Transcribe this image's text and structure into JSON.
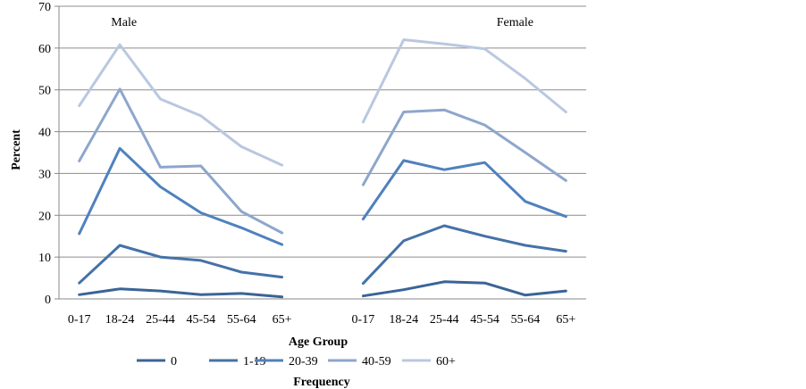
{
  "chart_data": {
    "type": "line",
    "ylabel": "Percent",
    "xlabel": "Age Group",
    "ylim": [
      0,
      70
    ],
    "yticks": [
      0,
      10,
      20,
      30,
      40,
      50,
      60,
      70
    ],
    "grid": true,
    "legend_title": "Frequency",
    "legend_position": "bottom",
    "categories": [
      "0-17",
      "18-24",
      "25-44",
      "45-54",
      "55-64",
      "65+"
    ],
    "series_colors": [
      "#3a6496",
      "#4472a8",
      "#4f81bd",
      "#8ea6cc",
      "#b9c8e0"
    ],
    "panels": [
      {
        "title": "Male",
        "series": [
          {
            "name": "0",
            "values": [
              1.0,
              2.4,
              1.9,
              1.0,
              1.3,
              0.5
            ]
          },
          {
            "name": "1-19",
            "values": [
              3.8,
              12.8,
              10.0,
              9.2,
              6.4,
              5.2
            ]
          },
          {
            "name": "20-39",
            "values": [
              15.6,
              36.0,
              26.8,
              20.6,
              17.0,
              13.0
            ]
          },
          {
            "name": "40-59",
            "values": [
              33.0,
              50.2,
              31.5,
              31.8,
              20.9,
              15.8
            ]
          },
          {
            "name": "60+",
            "values": [
              46.2,
              60.8,
              47.8,
              43.8,
              36.4,
              32.0
            ]
          }
        ]
      },
      {
        "title": "Female",
        "series": [
          {
            "name": "0",
            "values": [
              0.7,
              2.2,
              4.1,
              3.8,
              0.9,
              1.9
            ]
          },
          {
            "name": "1-19",
            "values": [
              3.7,
              13.9,
              17.5,
              15.0,
              12.8,
              11.4
            ]
          },
          {
            "name": "20-39",
            "values": [
              19.1,
              33.1,
              30.9,
              32.6,
              23.3,
              19.7
            ]
          },
          {
            "name": "40-59",
            "values": [
              27.3,
              44.7,
              45.2,
              41.6,
              35.0,
              28.3
            ]
          },
          {
            "name": "60+",
            "values": [
              42.3,
              62.0,
              61.0,
              59.8,
              52.7,
              44.7
            ]
          }
        ]
      }
    ]
  }
}
